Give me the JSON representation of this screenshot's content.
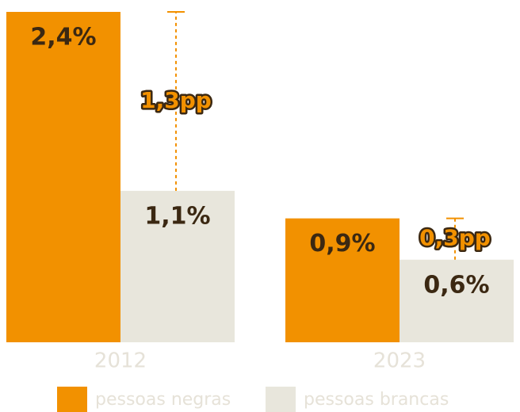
{
  "chart_data": {
    "type": "bar",
    "categories": [
      "2012",
      "2023"
    ],
    "series": [
      {
        "name": "pessoas negras",
        "color": "#f29100",
        "values": [
          2.4,
          0.9
        ],
        "value_labels": [
          "2,4%",
          "0,9%"
        ]
      },
      {
        "name": "pessoas brancas",
        "color": "#e8e6dc",
        "values": [
          1.1,
          0.6
        ],
        "value_labels": [
          "1,1%",
          "0,6%"
        ]
      }
    ],
    "annotations": [
      {
        "value": 1.3,
        "label": "1,3pp"
      },
      {
        "value": 0.3,
        "label": "0,3pp"
      }
    ],
    "ylim": [
      0,
      2.4
    ]
  }
}
